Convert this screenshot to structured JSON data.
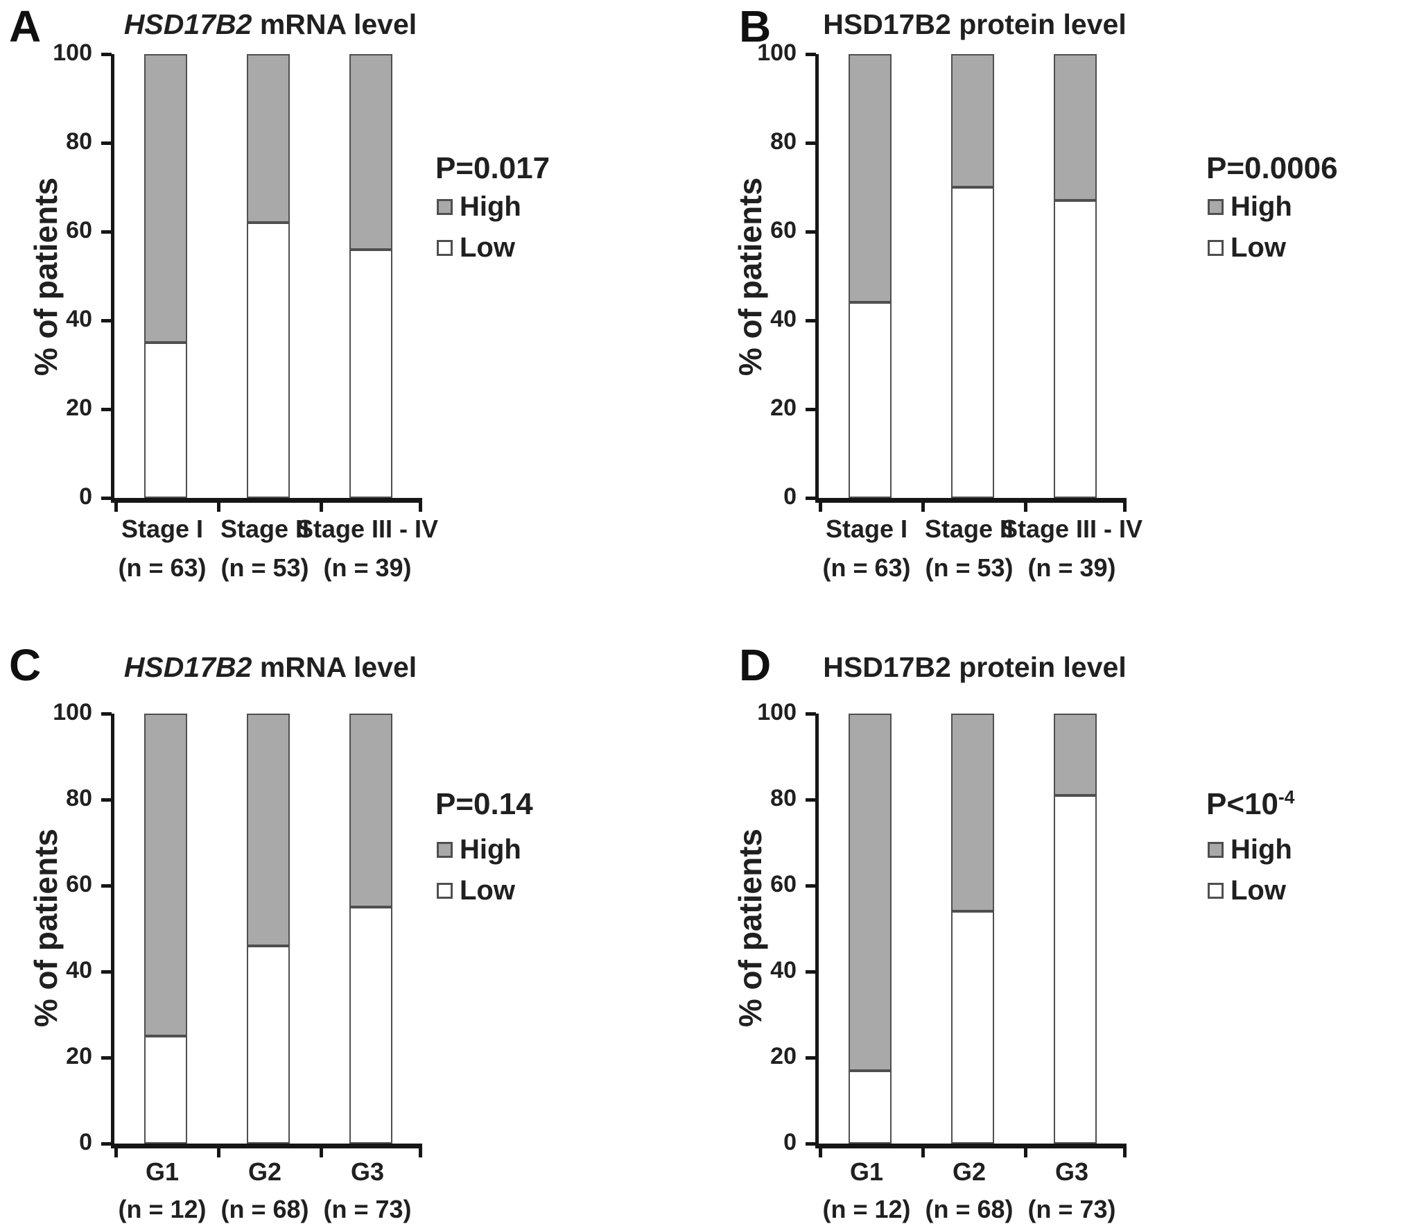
{
  "figure": {
    "background": "#ffffff"
  },
  "colors": {
    "bar_high": "#a9a9a9",
    "bar_low": "#ffffff",
    "bar_border": "#4f4f4f",
    "axis": "#161616",
    "text": "#202020"
  },
  "chart_data": [
    {
      "letter": "A",
      "type": "bar",
      "stacked": true,
      "title": "HSD17B2 mRNA level",
      "title_gene": "HSD17B2",
      "title_suffix": " mRNA level",
      "gene_italic": true,
      "p_base": "P=0.017",
      "p_exp": "",
      "ylabel": "% of patients",
      "ylim": [
        0,
        100
      ],
      "yticks": [
        0,
        20,
        40,
        60,
        80,
        100
      ],
      "categories": [
        "Stage I",
        "Stage II",
        "Stage III - IV"
      ],
      "n_labels": [
        "(n = 63)",
        "(n = 53)",
        "(n = 39)"
      ],
      "series": [
        {
          "name": "Low",
          "color": "#ffffff",
          "values": [
            35,
            62,
            56
          ]
        },
        {
          "name": "High",
          "color": "#a9a9a9",
          "values": [
            65,
            38,
            44
          ]
        }
      ],
      "legend_high": "High",
      "legend_low": "Low",
      "legend_position": "right"
    },
    {
      "letter": "B",
      "type": "bar",
      "stacked": true,
      "title": "HSD17B2 protein level",
      "title_gene": "HSD17B2",
      "title_suffix": " protein level",
      "gene_italic": false,
      "p_base": "P=0.0006",
      "p_exp": "",
      "ylabel": "% of patients",
      "ylim": [
        0,
        100
      ],
      "yticks": [
        0,
        20,
        40,
        60,
        80,
        100
      ],
      "categories": [
        "Stage I",
        "Stage II",
        "Stage III - IV"
      ],
      "n_labels": [
        "(n = 63)",
        "(n = 53)",
        "(n = 39)"
      ],
      "series": [
        {
          "name": "Low",
          "color": "#ffffff",
          "values": [
            44,
            70,
            67
          ]
        },
        {
          "name": "High",
          "color": "#a9a9a9",
          "values": [
            56,
            30,
            33
          ]
        }
      ],
      "legend_high": "High",
      "legend_low": "Low",
      "legend_position": "right"
    },
    {
      "letter": "C",
      "type": "bar",
      "stacked": true,
      "title": "HSD17B2 mRNA level",
      "title_gene": "HSD17B2",
      "title_suffix": " mRNA level",
      "gene_italic": true,
      "p_base": "P=0.14",
      "p_exp": "",
      "ylabel": "% of patients",
      "ylim": [
        0,
        100
      ],
      "yticks": [
        0,
        20,
        40,
        60,
        80,
        100
      ],
      "categories": [
        "G1",
        "G2",
        "G3"
      ],
      "n_labels": [
        "(n = 12)",
        "(n = 68)",
        "(n = 73)"
      ],
      "series": [
        {
          "name": "Low",
          "color": "#ffffff",
          "values": [
            25,
            46,
            55
          ]
        },
        {
          "name": "High",
          "color": "#a9a9a9",
          "values": [
            75,
            54,
            45
          ]
        }
      ],
      "legend_high": "High",
      "legend_low": "Low",
      "legend_position": "right"
    },
    {
      "letter": "D",
      "type": "bar",
      "stacked": true,
      "title": "HSD17B2 protein level",
      "title_gene": "HSD17B2",
      "title_suffix": " protein level",
      "gene_italic": false,
      "p_base": "P<10",
      "p_exp": "-4",
      "ylabel": "% of patients",
      "ylim": [
        0,
        100
      ],
      "yticks": [
        0,
        20,
        40,
        60,
        80,
        100
      ],
      "categories": [
        "G1",
        "G2",
        "G3"
      ],
      "n_labels": [
        "(n = 12)",
        "(n = 68)",
        "(n = 73)"
      ],
      "series": [
        {
          "name": "Low",
          "color": "#ffffff",
          "values": [
            17,
            54,
            81
          ]
        },
        {
          "name": "High",
          "color": "#a9a9a9",
          "values": [
            83,
            46,
            19
          ]
        }
      ],
      "legend_high": "High",
      "legend_low": "Low",
      "legend_position": "right"
    }
  ]
}
